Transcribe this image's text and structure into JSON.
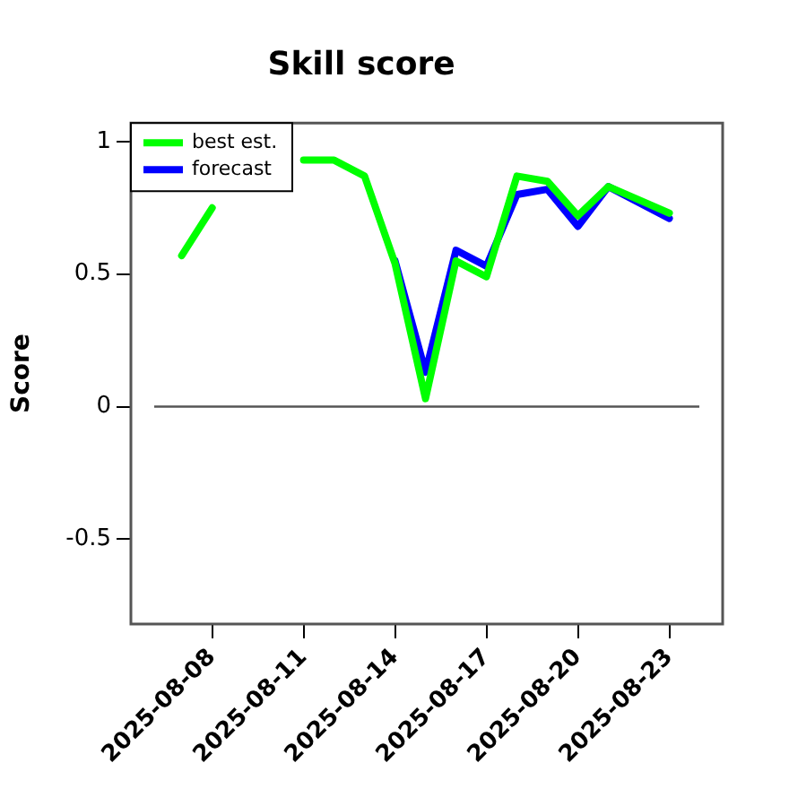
{
  "chart_data": {
    "type": "line",
    "title": "Skill score",
    "ylabel": "Score",
    "x": [
      "2025-08-07",
      "2025-08-08",
      "2025-08-09",
      "2025-08-10",
      "2025-08-11",
      "2025-08-12",
      "2025-08-13",
      "2025-08-14",
      "2025-08-15",
      "2025-08-16",
      "2025-08-17",
      "2025-08-18",
      "2025-08-19",
      "2025-08-20",
      "2025-08-21",
      "2025-08-22",
      "2025-08-23"
    ],
    "series": [
      {
        "name": "best est.",
        "color": "#00ff00",
        "values": [
          0.57,
          0.75,
          null,
          null,
          0.93,
          0.93,
          0.87,
          0.54,
          0.03,
          0.55,
          0.49,
          0.87,
          0.85,
          0.72,
          0.83,
          0.78,
          0.73
        ]
      },
      {
        "name": "forecast",
        "color": "#0000ff",
        "values": [
          null,
          null,
          null,
          null,
          null,
          null,
          null,
          0.55,
          0.13,
          0.59,
          0.53,
          0.8,
          0.82,
          0.68,
          0.83,
          0.77,
          0.71
        ]
      }
    ],
    "xlim": [
      "2025-08-05T08:00",
      "2025-08-24T18:00"
    ],
    "xticks": [
      {
        "value": "2025-08-08",
        "label": "2025-08-08"
      },
      {
        "value": "2025-08-11",
        "label": "2025-08-11"
      },
      {
        "value": "2025-08-14",
        "label": "2025-08-14"
      },
      {
        "value": "2025-08-17",
        "label": "2025-08-17"
      },
      {
        "value": "2025-08-20",
        "label": "2025-08-20"
      },
      {
        "value": "2025-08-23",
        "label": "2025-08-23"
      }
    ],
    "ylim": [
      -0.82,
      1.07
    ],
    "yticks": [
      -0.5,
      0,
      0.5,
      1
    ],
    "ref_lines": [
      {
        "axis": "y",
        "value": 0,
        "color": "#555555"
      }
    ],
    "grid": false,
    "legend": "top left",
    "marker": "none",
    "line_style": "solid"
  }
}
